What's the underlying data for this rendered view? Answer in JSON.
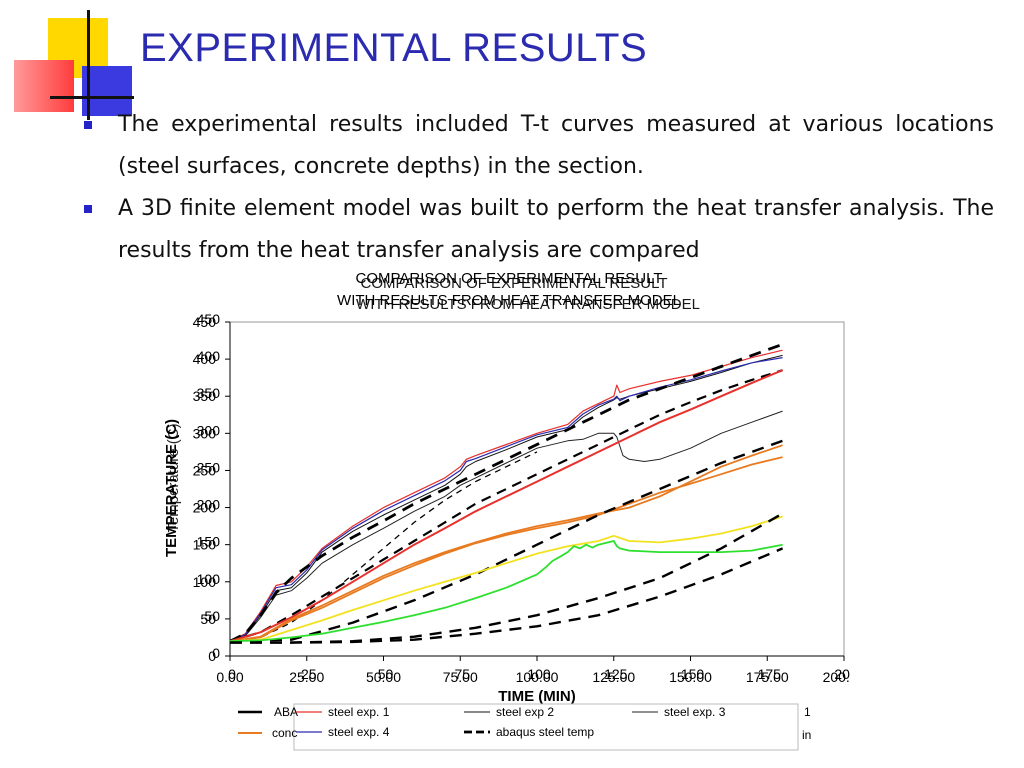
{
  "slide": {
    "title": "EXPERIMENTAL RESULTS",
    "bullets": [
      "The experimental results included T-t curves measured at various locations (steel surfaces, concrete depths) in the section.",
      "A 3D finite element model was built to perform the heat transfer analysis. The results from the heat transfer analysis are compared"
    ],
    "colors": {
      "title": "#2b2bb0",
      "bullet": "#2323c8"
    }
  },
  "chart_data": {
    "type": "line",
    "title": "COMPARISON OF EXPERIMENTAL RESULT",
    "subtitle": "WITH RESULTS FROM HEAT TRANSFER MODEL",
    "title_ghost_line1": "COMPARISON OF EXPERIMENTAL RESULT",
    "title_ghost_line2": "WITH RESULTS FROM HEAT TRANSFER MODEL",
    "xlabel": "TIME (MIN)",
    "ylabel": "TEMPERATURE (C)",
    "ylabel_ghost": "Temperature (C)",
    "xlim": [
      0,
      200
    ],
    "ylim": [
      0,
      450
    ],
    "x_ticks": [
      "0.00",
      "25.00",
      "50.00",
      "75.00",
      "100.00",
      "125.00",
      "150.00",
      "175.00",
      "200.00"
    ],
    "x_ticks_overlay": [
      "0",
      "25",
      "50",
      "75",
      "100",
      "125",
      "150",
      "175",
      "200"
    ],
    "y_ticks": [
      "0",
      "50",
      "100",
      "150",
      "200",
      "250",
      "300",
      "350",
      "400",
      "450"
    ],
    "y_ticks_overlay": [
      "0",
      "50",
      "100",
      "150",
      "200",
      "250",
      "300",
      "350",
      "400",
      "450"
    ],
    "grid": false,
    "legend_position": "bottom",
    "legend_ghost_1": "ABA",
    "legend_ghost_2": "conc",
    "legend_ghost_3": "1",
    "legend_ghost_4": "in",
    "series": [
      {
        "name": "steel exp. 1",
        "color": "#e8302c",
        "width": 1.2,
        "dash": "",
        "x": [
          0,
          5,
          10,
          15,
          20,
          25,
          30,
          40,
          50,
          60,
          70,
          75,
          77,
          80,
          90,
          100,
          110,
          115,
          120,
          125,
          126,
          127,
          130,
          140,
          150,
          160,
          170,
          180
        ],
        "y": [
          20,
          30,
          60,
          95,
          100,
          120,
          145,
          175,
          200,
          220,
          240,
          255,
          265,
          270,
          285,
          300,
          312,
          330,
          340,
          350,
          365,
          355,
          360,
          370,
          378,
          390,
          402,
          412
        ]
      },
      {
        "name": "steel exp 2",
        "color": "#111111",
        "width": 1.0,
        "dash": "",
        "x": [
          0,
          5,
          10,
          15,
          20,
          25,
          30,
          40,
          50,
          60,
          70,
          75,
          77,
          80,
          90,
          100,
          110,
          115,
          120,
          125,
          126,
          127,
          130,
          140,
          150,
          160,
          170,
          180
        ],
        "y": [
          20,
          28,
          55,
          88,
          92,
          112,
          140,
          168,
          190,
          210,
          230,
          245,
          255,
          262,
          278,
          295,
          305,
          322,
          335,
          345,
          348,
          346,
          350,
          360,
          370,
          382,
          395,
          405
        ]
      },
      {
        "name": "steel exp. 3",
        "color": "#222222",
        "width": 1.0,
        "dash": "",
        "x": [
          0,
          5,
          10,
          15,
          20,
          25,
          30,
          40,
          50,
          60,
          70,
          75,
          80,
          90,
          100,
          110,
          115,
          120,
          125,
          126,
          128,
          130,
          135,
          140,
          150,
          160,
          170,
          180
        ],
        "y": [
          20,
          27,
          52,
          82,
          88,
          105,
          125,
          150,
          172,
          195,
          215,
          230,
          240,
          260,
          280,
          290,
          292,
          300,
          300,
          295,
          270,
          265,
          262,
          265,
          280,
          300,
          315,
          330
        ]
      },
      {
        "name": "steel exp. 4",
        "color": "#2a2ab0",
        "width": 1.2,
        "dash": "",
        "x": [
          0,
          5,
          10,
          15,
          20,
          25,
          30,
          40,
          50,
          60,
          70,
          75,
          77,
          80,
          90,
          100,
          110,
          115,
          120,
          125,
          126,
          127,
          130,
          140,
          150,
          160,
          170,
          180
        ],
        "y": [
          20,
          29,
          58,
          92,
          96,
          116,
          143,
          172,
          196,
          216,
          236,
          250,
          262,
          266,
          282,
          298,
          308,
          326,
          338,
          346,
          350,
          344,
          350,
          362,
          372,
          384,
          395,
          402
        ]
      },
      {
        "name": "abaqus steel temp",
        "color": "#000000",
        "width": 2.8,
        "dash": "12,8",
        "x": [
          0,
          5,
          10,
          15,
          20,
          25,
          30,
          40,
          50,
          60,
          70,
          80,
          90,
          100,
          110,
          120,
          130,
          140,
          150,
          160,
          170,
          180
        ],
        "y": [
          20,
          30,
          55,
          85,
          105,
          120,
          135,
          160,
          182,
          205,
          225,
          245,
          265,
          285,
          305,
          325,
          345,
          360,
          375,
          390,
          405,
          420
        ]
      },
      {
        "name": "",
        "color": "#000000",
        "width": 2.2,
        "dash": "10,7",
        "x": [
          0,
          10,
          20,
          30,
          40,
          50,
          60,
          70,
          80,
          90,
          100,
          110,
          120,
          130,
          140,
          150,
          160,
          170,
          180
        ],
        "y": [
          20,
          32,
          55,
          80,
          105,
          130,
          155,
          180,
          205,
          225,
          245,
          265,
          285,
          305,
          325,
          342,
          358,
          372,
          385
        ]
      },
      {
        "name": "",
        "color": "#000000",
        "width": 1.3,
        "dash": "6,5",
        "x": [
          0,
          10,
          20,
          30,
          40,
          50,
          60,
          70,
          80,
          90,
          100
        ],
        "y": [
          20,
          25,
          45,
          75,
          110,
          145,
          180,
          210,
          235,
          255,
          275
        ]
      },
      {
        "name": "",
        "color": "#e8302c",
        "width": 2.0,
        "dash": "",
        "x": [
          0,
          10,
          20,
          30,
          40,
          50,
          60,
          70,
          80,
          90,
          100,
          110,
          120,
          130,
          140,
          150,
          160,
          170,
          180
        ],
        "y": [
          20,
          32,
          52,
          75,
          100,
          125,
          150,
          172,
          195,
          215,
          235,
          255,
          275,
          295,
          315,
          332,
          350,
          368,
          385
        ]
      },
      {
        "name": "",
        "color": "#e87a20",
        "width": 1.8,
        "dash": "",
        "x": [
          0,
          10,
          20,
          30,
          40,
          50,
          60,
          70,
          80,
          90,
          100,
          110,
          120,
          130,
          140,
          150,
          160,
          170,
          180
        ],
        "y": [
          20,
          25,
          48,
          65,
          85,
          105,
          122,
          138,
          152,
          163,
          172,
          180,
          190,
          205,
          220,
          232,
          245,
          258,
          268
        ]
      },
      {
        "name": "",
        "color": "#e87a20",
        "width": 1.8,
        "dash": "",
        "x": [
          0,
          10,
          20,
          30,
          40,
          50,
          60,
          70,
          80,
          90,
          100,
          110,
          120,
          130,
          140,
          150,
          160,
          170,
          180
        ],
        "y": [
          20,
          26,
          50,
          68,
          88,
          108,
          125,
          140,
          153,
          165,
          175,
          183,
          192,
          200,
          215,
          235,
          255,
          270,
          284
        ]
      },
      {
        "name": "",
        "color": "#000000",
        "width": 2.4,
        "dash": "12,8",
        "x": [
          0,
          20,
          40,
          60,
          80,
          100,
          120,
          140,
          160,
          180
        ],
        "y": [
          20,
          22,
          45,
          75,
          110,
          150,
          190,
          225,
          260,
          290
        ]
      },
      {
        "name": "",
        "color": "#f2e21e",
        "width": 1.8,
        "dash": "",
        "x": [
          0,
          10,
          20,
          30,
          40,
          50,
          60,
          70,
          80,
          90,
          100,
          110,
          120,
          125,
          130,
          140,
          150,
          160,
          170,
          180
        ],
        "y": [
          20,
          22,
          35,
          48,
          62,
          75,
          88,
          100,
          112,
          125,
          138,
          148,
          155,
          162,
          155,
          153,
          158,
          165,
          175,
          188
        ]
      },
      {
        "name": "",
        "color": "#2ee02e",
        "width": 1.8,
        "dash": "",
        "x": [
          0,
          10,
          20,
          30,
          40,
          50,
          60,
          70,
          80,
          90,
          100,
          103,
          105,
          108,
          110,
          112,
          114,
          116,
          118,
          120,
          125,
          126,
          127,
          130,
          140,
          150,
          160,
          170,
          180
        ],
        "y": [
          20,
          21,
          25,
          30,
          38,
          46,
          55,
          65,
          78,
          92,
          110,
          120,
          128,
          135,
          140,
          148,
          145,
          150,
          146,
          150,
          155,
          148,
          145,
          142,
          140,
          140,
          140,
          142,
          150
        ]
      },
      {
        "name": "",
        "color": "#000000",
        "width": 2.4,
        "dash": "12,8",
        "x": [
          0,
          20,
          40,
          60,
          80,
          100,
          120,
          140,
          160,
          180
        ],
        "y": [
          18,
          18,
          20,
          26,
          38,
          55,
          78,
          105,
          145,
          192
        ]
      },
      {
        "name": "",
        "color": "#000000",
        "width": 2.4,
        "dash": "12,8",
        "x": [
          0,
          20,
          40,
          60,
          80,
          100,
          120,
          140,
          160,
          180
        ],
        "y": [
          18,
          18,
          19,
          22,
          30,
          40,
          55,
          80,
          110,
          145
        ]
      }
    ],
    "legend_entries": [
      {
        "label": "steel exp. 1",
        "series": 0
      },
      {
        "label": "steel exp 2",
        "series": 1
      },
      {
        "label": "steel exp. 3",
        "series": 2
      },
      {
        "label": "steel exp. 4",
        "series": 3
      },
      {
        "label": "abaqus steel temp",
        "series": 4
      }
    ]
  }
}
